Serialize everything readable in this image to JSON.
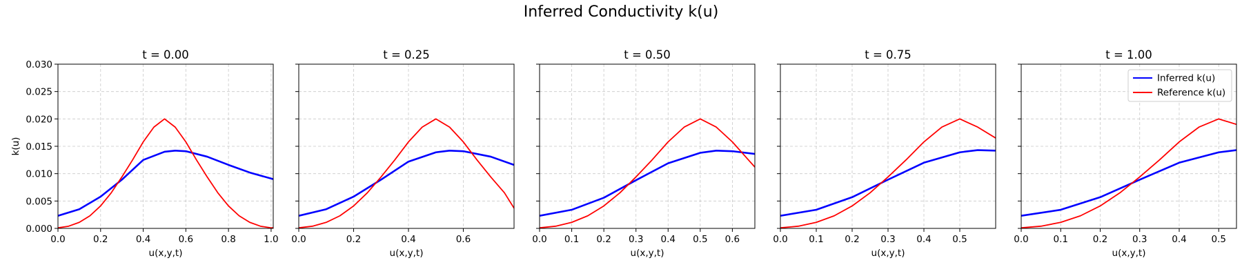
{
  "figure": {
    "title": "Inferred Conductivity k(u)"
  },
  "legend": {
    "placement": "top-right",
    "entries": [
      {
        "label": "Inferred k(u)",
        "color": "#0000ff"
      },
      {
        "label": "Reference k(u)",
        "color": "#ff0000"
      }
    ]
  },
  "chart_data": [
    {
      "type": "line",
      "title": "t = 0.00",
      "xlabel": "u(x,y,t)",
      "ylabel": "k(u)",
      "xlim": [
        0,
        1.01
      ],
      "ylim": [
        0,
        0.03
      ],
      "xticks": [
        0,
        0.2,
        0.4,
        0.6,
        0.8,
        1.0
      ],
      "xtick_labels": [
        "0.0",
        "0.2",
        "0.4",
        "0.6",
        "0.8",
        "1.0"
      ],
      "yticks": [
        0,
        0.005,
        0.01,
        0.015,
        0.02,
        0.025,
        0.03
      ],
      "ytick_labels": [
        "0.000",
        "0.005",
        "0.010",
        "0.015",
        "0.020",
        "0.025",
        "0.030"
      ],
      "grid": true,
      "series": [
        {
          "name": "Inferred k(u)",
          "color": "#0000ff",
          "x": [
            0,
            0.1,
            0.2,
            0.3,
            0.4,
            0.5,
            0.55,
            0.6,
            0.7,
            0.8,
            0.9,
            1.0,
            1.01
          ],
          "y": [
            0.0023,
            0.0035,
            0.0058,
            0.0089,
            0.0125,
            0.014,
            0.0142,
            0.0141,
            0.0131,
            0.0116,
            0.0102,
            0.0091,
            0.009
          ]
        },
        {
          "name": "Reference k(u)",
          "color": "#ff0000",
          "x": [
            0,
            0.05,
            0.1,
            0.15,
            0.2,
            0.25,
            0.3,
            0.35,
            0.4,
            0.45,
            0.5,
            0.55,
            0.6,
            0.65,
            0.7,
            0.75,
            0.8,
            0.85,
            0.9,
            0.95,
            1.0,
            1.01
          ],
          "y": [
            0.0001,
            0.0004,
            0.0011,
            0.0023,
            0.0041,
            0.0065,
            0.0094,
            0.0125,
            0.0158,
            0.0185,
            0.02,
            0.0185,
            0.0158,
            0.0125,
            0.0094,
            0.0065,
            0.0041,
            0.0023,
            0.0011,
            0.0004,
            0.0001,
            0.0001
          ]
        }
      ]
    },
    {
      "type": "line",
      "title": "t = 0.25",
      "xlabel": "u(x,y,t)",
      "ylabel": "",
      "xlim": [
        0,
        0.785
      ],
      "ylim": [
        0,
        0.03
      ],
      "xticks": [
        0,
        0.2,
        0.4,
        0.6
      ],
      "xtick_labels": [
        "0.0",
        "0.2",
        "0.4",
        "0.6"
      ],
      "grid": true,
      "series": [
        {
          "name": "Inferred k(u)",
          "color": "#0000ff",
          "x": [
            0,
            0.1,
            0.2,
            0.3,
            0.4,
            0.5,
            0.55,
            0.6,
            0.7,
            0.785
          ],
          "y": [
            0.0023,
            0.0035,
            0.0058,
            0.0089,
            0.0122,
            0.0139,
            0.0142,
            0.0141,
            0.0131,
            0.0116
          ]
        },
        {
          "name": "Reference k(u)",
          "color": "#ff0000",
          "x": [
            0,
            0.05,
            0.1,
            0.15,
            0.2,
            0.25,
            0.3,
            0.35,
            0.4,
            0.45,
            0.5,
            0.55,
            0.6,
            0.65,
            0.7,
            0.75,
            0.785
          ],
          "y": [
            0.0001,
            0.0004,
            0.0011,
            0.0023,
            0.0041,
            0.0065,
            0.0094,
            0.0125,
            0.0158,
            0.0185,
            0.02,
            0.0185,
            0.0158,
            0.0125,
            0.0094,
            0.0065,
            0.0037
          ]
        }
      ]
    },
    {
      "type": "line",
      "title": "t = 0.50",
      "xlabel": "u(x,y,t)",
      "ylabel": "",
      "xlim": [
        0,
        0.67
      ],
      "ylim": [
        0,
        0.03
      ],
      "xticks": [
        0,
        0.1,
        0.2,
        0.3,
        0.4,
        0.5,
        0.6
      ],
      "xtick_labels": [
        "0.0",
        "0.1",
        "0.2",
        "0.3",
        "0.4",
        "0.5",
        "0.6"
      ],
      "grid": true,
      "series": [
        {
          "name": "Inferred k(u)",
          "color": "#0000ff",
          "x": [
            0,
            0.1,
            0.2,
            0.3,
            0.4,
            0.5,
            0.55,
            0.6,
            0.67
          ],
          "y": [
            0.0023,
            0.0034,
            0.0056,
            0.0088,
            0.0119,
            0.0138,
            0.0142,
            0.0141,
            0.0136
          ]
        },
        {
          "name": "Reference k(u)",
          "color": "#ff0000",
          "x": [
            0,
            0.05,
            0.1,
            0.15,
            0.2,
            0.25,
            0.3,
            0.35,
            0.4,
            0.45,
            0.5,
            0.55,
            0.6,
            0.65,
            0.67
          ],
          "y": [
            0.0001,
            0.0004,
            0.0011,
            0.0023,
            0.0041,
            0.0065,
            0.0094,
            0.0125,
            0.0158,
            0.0185,
            0.02,
            0.0185,
            0.0158,
            0.0125,
            0.0112
          ]
        }
      ]
    },
    {
      "type": "line",
      "title": "t = 0.75",
      "xlabel": "u(x,y,t)",
      "ylabel": "",
      "xlim": [
        0,
        0.6
      ],
      "ylim": [
        0,
        0.03
      ],
      "xticks": [
        0,
        0.1,
        0.2,
        0.3,
        0.4,
        0.5
      ],
      "xtick_labels": [
        "0.0",
        "0.1",
        "0.2",
        "0.3",
        "0.4",
        "0.5"
      ],
      "grid": true,
      "series": [
        {
          "name": "Inferred k(u)",
          "color": "#0000ff",
          "x": [
            0,
            0.1,
            0.2,
            0.3,
            0.4,
            0.5,
            0.55,
            0.6
          ],
          "y": [
            0.0023,
            0.0034,
            0.0057,
            0.0089,
            0.012,
            0.0139,
            0.0143,
            0.0142
          ]
        },
        {
          "name": "Reference k(u)",
          "color": "#ff0000",
          "x": [
            0,
            0.05,
            0.1,
            0.15,
            0.2,
            0.25,
            0.3,
            0.35,
            0.4,
            0.45,
            0.5,
            0.55,
            0.6
          ],
          "y": [
            0.0001,
            0.0004,
            0.0011,
            0.0023,
            0.0041,
            0.0065,
            0.0094,
            0.0125,
            0.0158,
            0.0185,
            0.02,
            0.0185,
            0.0165
          ]
        }
      ]
    },
    {
      "type": "line",
      "title": "t = 1.00",
      "xlabel": "u(x,y,t)",
      "ylabel": "",
      "xlim": [
        0,
        0.545
      ],
      "ylim": [
        0,
        0.03
      ],
      "xticks": [
        0,
        0.1,
        0.2,
        0.3,
        0.4,
        0.5
      ],
      "xtick_labels": [
        "0.0",
        "0.1",
        "0.2",
        "0.3",
        "0.4",
        "0.5"
      ],
      "grid": true,
      "series": [
        {
          "name": "Inferred k(u)",
          "color": "#0000ff",
          "x": [
            0,
            0.1,
            0.2,
            0.3,
            0.4,
            0.5,
            0.545
          ],
          "y": [
            0.0023,
            0.0034,
            0.0057,
            0.0089,
            0.012,
            0.0139,
            0.0143
          ]
        },
        {
          "name": "Reference k(u)",
          "color": "#ff0000",
          "x": [
            0,
            0.05,
            0.1,
            0.15,
            0.2,
            0.25,
            0.3,
            0.35,
            0.4,
            0.45,
            0.5,
            0.545
          ],
          "y": [
            0.0001,
            0.0004,
            0.0011,
            0.0023,
            0.0041,
            0.0065,
            0.0094,
            0.0125,
            0.0158,
            0.0185,
            0.02,
            0.019
          ]
        }
      ]
    }
  ]
}
